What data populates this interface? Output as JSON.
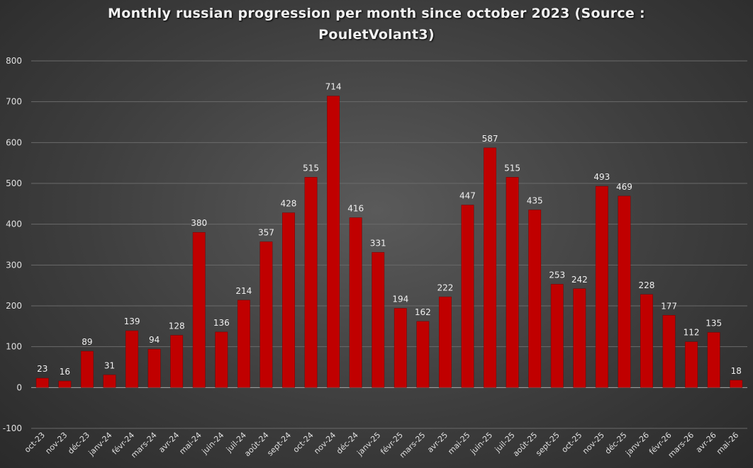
{
  "chart_data": {
    "type": "bar",
    "title_line1": "Monthly russian progression per month since october 2023 (Source :",
    "title_line2": "PouletVolant3)",
    "categories": [
      "oct-23",
      "nov-23",
      "déc-23",
      "janv-24",
      "févr-24",
      "mars-24",
      "avr-24",
      "mai-24",
      "juin-24",
      "juil-24",
      "août-24",
      "sept-24",
      "oct-24",
      "nov-24",
      "déc-24",
      "janv-25",
      "févr-25",
      "mars-25",
      "avr-25",
      "mai-25",
      "juin-25",
      "juil-25",
      "août-25",
      "sept-25",
      "oct-25",
      "nov-25",
      "déc-25",
      "janv-26",
      "févr-26",
      "mars-26",
      "avr-26",
      "mai-26"
    ],
    "values": [
      23,
      16,
      89,
      31,
      139,
      94,
      128,
      380,
      136,
      214,
      357,
      428,
      515,
      714,
      416,
      331,
      194,
      162,
      222,
      447,
      587,
      515,
      435,
      253,
      242,
      493,
      469,
      228,
      177,
      112,
      135,
      18
    ],
    "ylim": [
      -100,
      800
    ],
    "yticks": [
      -100,
      0,
      100,
      200,
      300,
      400,
      500,
      600,
      700,
      800
    ],
    "bar_color": "#c00000",
    "grid": true,
    "legend": "none",
    "xlabel": "",
    "ylabel": ""
  }
}
